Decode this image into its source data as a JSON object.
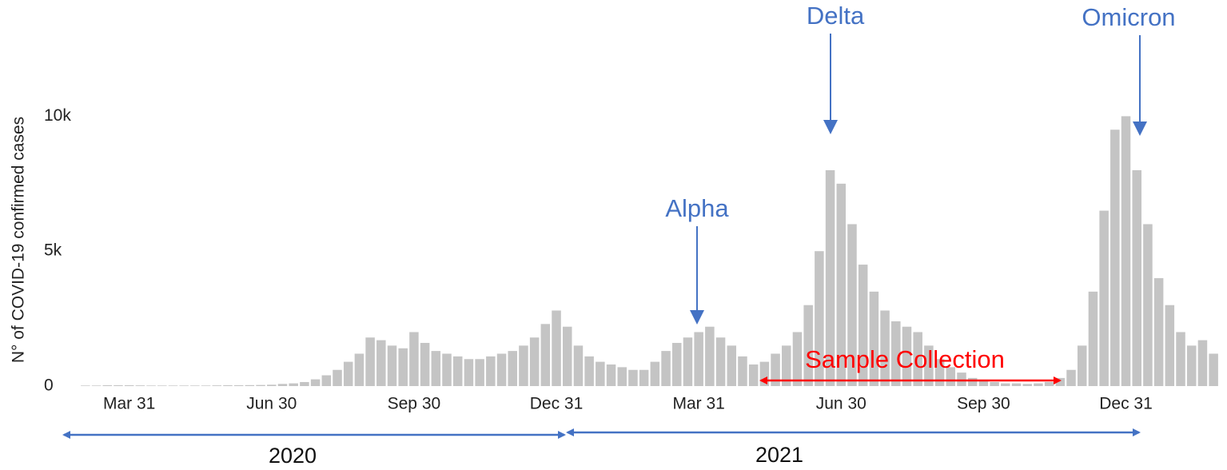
{
  "chart_data": {
    "type": "bar",
    "y_label": "N° of COVID-19 confirmed cases",
    "categories": [
      null,
      null,
      null,
      null,
      "Mar 31",
      null,
      null,
      null,
      null,
      null,
      null,
      null,
      null,
      null,
      null,
      null,
      null,
      "Jun 30",
      null,
      null,
      null,
      null,
      null,
      null,
      null,
      null,
      null,
      null,
      null,
      null,
      "Sep 30",
      null,
      null,
      null,
      null,
      null,
      null,
      null,
      null,
      null,
      null,
      null,
      null,
      "Dec 31",
      null,
      null,
      null,
      null,
      null,
      null,
      null,
      null,
      null,
      null,
      null,
      null,
      "Mar 31",
      null,
      null,
      null,
      null,
      null,
      null,
      null,
      null,
      null,
      null,
      null,
      null,
      "Jun 30",
      null,
      null,
      null,
      null,
      null,
      null,
      null,
      null,
      null,
      null,
      null,
      null,
      "Sep 30",
      null,
      null,
      null,
      null,
      null,
      null,
      null,
      null,
      null,
      null,
      null,
      null,
      "Dec 31",
      null,
      null,
      null,
      null,
      null,
      null,
      null,
      null
    ],
    "values": [
      20,
      20,
      30,
      30,
      30,
      25,
      20,
      20,
      20,
      20,
      20,
      20,
      25,
      30,
      30,
      35,
      40,
      50,
      80,
      100,
      150,
      250,
      400,
      600,
      900,
      1200,
      1800,
      1700,
      1500,
      1400,
      2000,
      1600,
      1300,
      1200,
      1100,
      1000,
      1000,
      1100,
      1200,
      1300,
      1500,
      1800,
      2300,
      2800,
      2200,
      1500,
      1100,
      900,
      800,
      700,
      600,
      600,
      900,
      1300,
      1600,
      1800,
      2000,
      2200,
      1800,
      1500,
      1100,
      800,
      900,
      1200,
      1500,
      2000,
      3000,
      5000,
      8000,
      7500,
      6000,
      4500,
      3500,
      2800,
      2400,
      2200,
      2000,
      1500,
      1000,
      700,
      500,
      300,
      200,
      150,
      100,
      100,
      80,
      100,
      150,
      300,
      600,
      1500,
      3500,
      6500,
      9500,
      10000,
      8000,
      6000,
      4000,
      3000,
      2000,
      1500,
      1700,
      1200
    ],
    "color": "#c4c4c4",
    "ylim": [
      0,
      12500
    ],
    "yticks": [
      {
        "value": 0,
        "label": "0"
      },
      {
        "value": 5000,
        "label": "5k"
      },
      {
        "value": 10000,
        "label": "10k"
      }
    ],
    "grid": false,
    "annotations": [
      "Alpha",
      "Delta",
      "Omicron",
      "Sample Collection",
      "2020",
      "2021"
    ]
  }
}
